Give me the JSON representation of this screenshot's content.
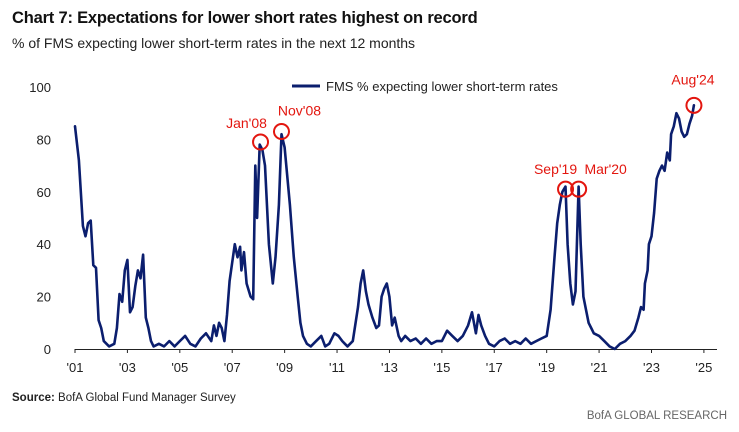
{
  "header": {
    "title": "Chart 7: Expectations for lower short rates highest on record",
    "subtitle": "% of FMS expecting lower short-term rates in the next 12 months"
  },
  "footer": {
    "source_label": "Source:",
    "source_text": "BofA Global Fund Manager Survey",
    "credit": "BofA GLOBAL RESEARCH"
  },
  "colors": {
    "line": "#0b1e6e",
    "annotation": "#e3160f"
  },
  "chart_data": {
    "type": "line",
    "title": "Chart 7: Expectations for lower short rates highest on record",
    "subtitle": "% of FMS expecting lower short-term rates in the next 12 months",
    "xlabel": "",
    "ylabel": "",
    "xlim": [
      2001.0,
      2025.5
    ],
    "ylim": [
      0,
      100
    ],
    "grid": false,
    "legend_position": "top-right",
    "x_tick_labels": [
      "'01",
      "'03",
      "'05",
      "'07",
      "'09",
      "'11",
      "'13",
      "'15",
      "'17",
      "'19",
      "'21",
      "'23",
      "'25"
    ],
    "x_tick_values": [
      2001,
      2003,
      2005,
      2007,
      2009,
      2011,
      2013,
      2015,
      2017,
      2019,
      2021,
      2023,
      2025
    ],
    "y_ticks": [
      0,
      20,
      40,
      60,
      80,
      100
    ],
    "series": [
      {
        "name": "FMS % expecting lower short-term rates",
        "color": "#0b1e6e",
        "points": [
          [
            2001.0,
            85
          ],
          [
            2001.15,
            72
          ],
          [
            2001.3,
            47
          ],
          [
            2001.4,
            43
          ],
          [
            2001.5,
            48
          ],
          [
            2001.6,
            49
          ],
          [
            2001.7,
            32
          ],
          [
            2001.8,
            31
          ],
          [
            2001.9,
            11
          ],
          [
            2002.0,
            8
          ],
          [
            2002.1,
            3
          ],
          [
            2002.3,
            1
          ],
          [
            2002.5,
            2
          ],
          [
            2002.6,
            8
          ],
          [
            2002.7,
            21
          ],
          [
            2002.8,
            18
          ],
          [
            2002.9,
            30
          ],
          [
            2003.0,
            34
          ],
          [
            2003.1,
            14
          ],
          [
            2003.2,
            16
          ],
          [
            2003.3,
            24
          ],
          [
            2003.4,
            30
          ],
          [
            2003.5,
            27
          ],
          [
            2003.6,
            36
          ],
          [
            2003.7,
            12
          ],
          [
            2003.8,
            8
          ],
          [
            2003.9,
            3
          ],
          [
            2004.0,
            1
          ],
          [
            2004.2,
            2
          ],
          [
            2004.4,
            1
          ],
          [
            2004.6,
            3
          ],
          [
            2004.8,
            1
          ],
          [
            2005.0,
            3
          ],
          [
            2005.2,
            5
          ],
          [
            2005.4,
            2
          ],
          [
            2005.6,
            1
          ],
          [
            2005.8,
            4
          ],
          [
            2006.0,
            6
          ],
          [
            2006.2,
            3
          ],
          [
            2006.3,
            9
          ],
          [
            2006.4,
            5
          ],
          [
            2006.5,
            10
          ],
          [
            2006.6,
            8
          ],
          [
            2006.7,
            3
          ],
          [
            2006.8,
            13
          ],
          [
            2006.9,
            26
          ],
          [
            2007.0,
            33
          ],
          [
            2007.1,
            40
          ],
          [
            2007.2,
            35
          ],
          [
            2007.3,
            39
          ],
          [
            2007.35,
            30
          ],
          [
            2007.45,
            37
          ],
          [
            2007.55,
            25
          ],
          [
            2007.7,
            20
          ],
          [
            2007.8,
            19
          ],
          [
            2007.88,
            70
          ],
          [
            2007.95,
            50
          ],
          [
            2008.05,
            78
          ],
          [
            2008.15,
            76
          ],
          [
            2008.25,
            70
          ],
          [
            2008.4,
            40
          ],
          [
            2008.55,
            25
          ],
          [
            2008.65,
            35
          ],
          [
            2008.78,
            55
          ],
          [
            2008.88,
            82
          ],
          [
            2009.0,
            77
          ],
          [
            2009.2,
            55
          ],
          [
            2009.35,
            35
          ],
          [
            2009.5,
            20
          ],
          [
            2009.6,
            10
          ],
          [
            2009.7,
            5
          ],
          [
            2009.85,
            2
          ],
          [
            2010.0,
            1
          ],
          [
            2010.2,
            3
          ],
          [
            2010.4,
            5
          ],
          [
            2010.55,
            1
          ],
          [
            2010.7,
            2
          ],
          [
            2010.9,
            6
          ],
          [
            2011.05,
            5
          ],
          [
            2011.2,
            3
          ],
          [
            2011.3,
            2
          ],
          [
            2011.4,
            1
          ],
          [
            2011.6,
            3
          ],
          [
            2011.8,
            16
          ],
          [
            2011.9,
            25
          ],
          [
            2012.0,
            30
          ],
          [
            2012.1,
            22
          ],
          [
            2012.2,
            17
          ],
          [
            2012.35,
            12
          ],
          [
            2012.5,
            8
          ],
          [
            2012.6,
            9
          ],
          [
            2012.7,
            20
          ],
          [
            2012.8,
            23
          ],
          [
            2012.9,
            25
          ],
          [
            2013.0,
            20
          ],
          [
            2013.1,
            9
          ],
          [
            2013.2,
            12
          ],
          [
            2013.35,
            5
          ],
          [
            2013.45,
            3
          ],
          [
            2013.6,
            5
          ],
          [
            2013.8,
            3
          ],
          [
            2014.0,
            4
          ],
          [
            2014.2,
            2
          ],
          [
            2014.4,
            4
          ],
          [
            2014.6,
            2
          ],
          [
            2014.8,
            3
          ],
          [
            2015.0,
            3
          ],
          [
            2015.2,
            7
          ],
          [
            2015.4,
            5
          ],
          [
            2015.6,
            3
          ],
          [
            2015.8,
            5
          ],
          [
            2016.0,
            9
          ],
          [
            2016.15,
            14
          ],
          [
            2016.3,
            6
          ],
          [
            2016.4,
            13
          ],
          [
            2016.5,
            9
          ],
          [
            2016.65,
            5
          ],
          [
            2016.8,
            2
          ],
          [
            2017.0,
            1
          ],
          [
            2017.2,
            3
          ],
          [
            2017.4,
            4
          ],
          [
            2017.6,
            2
          ],
          [
            2017.8,
            3
          ],
          [
            2018.0,
            2
          ],
          [
            2018.2,
            4
          ],
          [
            2018.4,
            2
          ],
          [
            2018.6,
            3
          ],
          [
            2018.8,
            4
          ],
          [
            2019.0,
            5
          ],
          [
            2019.15,
            15
          ],
          [
            2019.3,
            35
          ],
          [
            2019.4,
            48
          ],
          [
            2019.5,
            55
          ],
          [
            2019.6,
            60
          ],
          [
            2019.72,
            62
          ],
          [
            2019.8,
            40
          ],
          [
            2019.9,
            25
          ],
          [
            2020.0,
            17
          ],
          [
            2020.1,
            22
          ],
          [
            2020.22,
            62
          ],
          [
            2020.3,
            40
          ],
          [
            2020.4,
            20
          ],
          [
            2020.5,
            15
          ],
          [
            2020.6,
            10
          ],
          [
            2020.7,
            8
          ],
          [
            2020.8,
            6
          ],
          [
            2021.0,
            5
          ],
          [
            2021.2,
            3
          ],
          [
            2021.4,
            1
          ],
          [
            2021.6,
            0
          ],
          [
            2021.8,
            2
          ],
          [
            2022.0,
            3
          ],
          [
            2022.2,
            5
          ],
          [
            2022.35,
            7
          ],
          [
            2022.5,
            12
          ],
          [
            2022.6,
            16
          ],
          [
            2022.7,
            15
          ],
          [
            2022.75,
            25
          ],
          [
            2022.85,
            30
          ],
          [
            2022.9,
            40
          ],
          [
            2023.0,
            43
          ],
          [
            2023.1,
            52
          ],
          [
            2023.2,
            65
          ],
          [
            2023.3,
            68
          ],
          [
            2023.4,
            70
          ],
          [
            2023.5,
            68
          ],
          [
            2023.6,
            75
          ],
          [
            2023.7,
            72
          ],
          [
            2023.75,
            82
          ],
          [
            2023.85,
            85
          ],
          [
            2023.95,
            90
          ],
          [
            2024.05,
            88
          ],
          [
            2024.15,
            83
          ],
          [
            2024.25,
            81
          ],
          [
            2024.35,
            82
          ],
          [
            2024.45,
            86
          ],
          [
            2024.55,
            89
          ],
          [
            2024.62,
            93
          ]
        ]
      }
    ],
    "annotations": [
      {
        "label": "Jan'08",
        "x": 2008.08,
        "y": 79
      },
      {
        "label": "Nov'08",
        "x": 2008.88,
        "y": 83
      },
      {
        "label": "Sep'19",
        "x": 2019.72,
        "y": 61
      },
      {
        "label": "Mar'20",
        "x": 2020.22,
        "y": 61
      },
      {
        "label": "Aug'24",
        "x": 2024.62,
        "y": 93
      }
    ]
  }
}
